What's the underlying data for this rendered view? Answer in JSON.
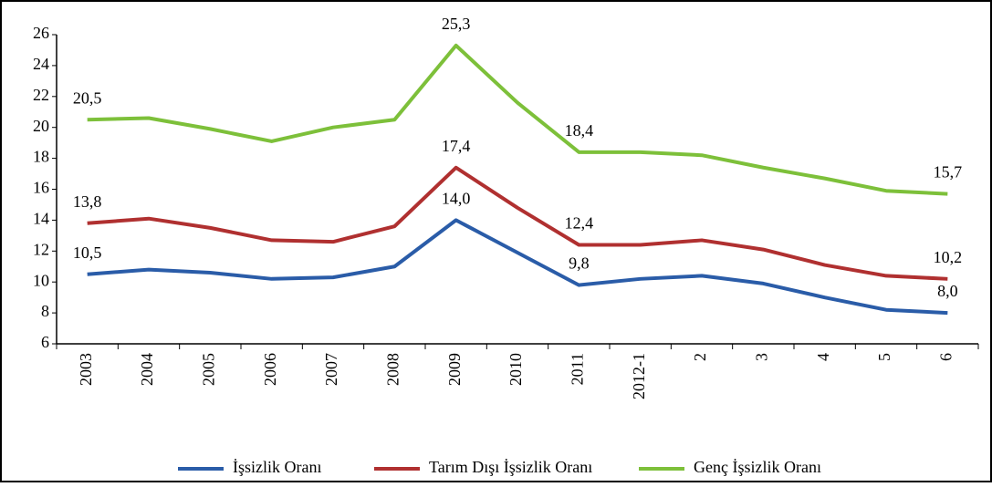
{
  "chart_data": {
    "type": "line",
    "categories": [
      "2003",
      "2004",
      "2005",
      "2006",
      "2007",
      "2008",
      "2009",
      "2010",
      "2011",
      "2012-1",
      "2",
      "3",
      "4",
      "5",
      "6"
    ],
    "series": [
      {
        "name": "İşsizlik Oranı",
        "color": "#2a5ca8",
        "values": [
          10.5,
          10.8,
          10.6,
          10.2,
          10.3,
          11.0,
          14.0,
          11.9,
          9.8,
          10.2,
          10.4,
          9.9,
          9.0,
          8.2,
          8.0
        ],
        "value_labels": [
          "10,5",
          null,
          null,
          null,
          null,
          null,
          "14,0",
          null,
          "9,8",
          null,
          null,
          null,
          null,
          null,
          "8,0"
        ]
      },
      {
        "name": "Tarım Dışı İşsizlik Oranı",
        "color": "#b03030",
        "values": [
          13.8,
          14.1,
          13.5,
          12.7,
          12.6,
          13.6,
          17.4,
          14.8,
          12.4,
          12.4,
          12.7,
          12.1,
          11.1,
          10.4,
          10.2
        ],
        "value_labels": [
          "13,8",
          null,
          null,
          null,
          null,
          null,
          "17,4",
          null,
          "12,4",
          null,
          null,
          null,
          null,
          null,
          "10,2"
        ]
      },
      {
        "name": "Genç İşsizlik Oranı",
        "color": "#7dc03a",
        "values": [
          20.5,
          20.6,
          19.9,
          19.1,
          20.0,
          20.5,
          25.3,
          21.6,
          18.4,
          18.4,
          18.2,
          17.4,
          16.7,
          15.9,
          15.7
        ],
        "value_labels": [
          "20,5",
          null,
          null,
          null,
          null,
          null,
          "25,3",
          null,
          "18,4",
          null,
          null,
          null,
          null,
          null,
          "15,7"
        ]
      }
    ],
    "ylim": [
      6,
      26
    ],
    "yticks": [
      6,
      8,
      10,
      12,
      14,
      16,
      18,
      20,
      22,
      24,
      26
    ],
    "legend": "bottom"
  }
}
